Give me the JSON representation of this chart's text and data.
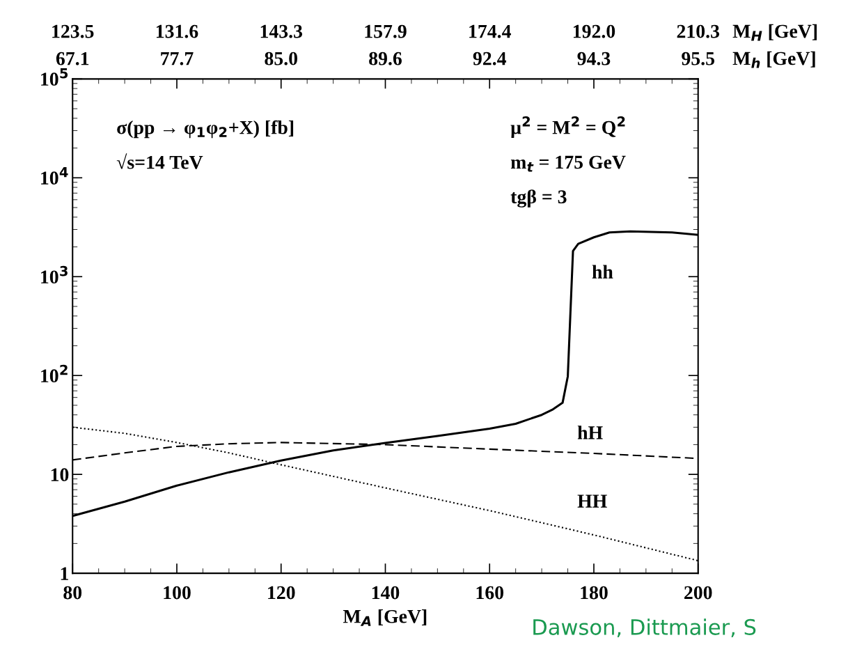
{
  "chart_data": {
    "type": "line",
    "xlabel": "M$_{A}$ [GeV]",
    "xlim": [
      80,
      200
    ],
    "xticks": [
      80,
      100,
      120,
      140,
      160,
      180,
      200
    ],
    "log": true,
    "ylim": [
      1,
      100000
    ],
    "yticks": [
      {
        "value": 1,
        "label": "1"
      },
      {
        "value": 10,
        "label": "10"
      },
      {
        "value": 100,
        "label": "10$^{2}$"
      },
      {
        "value": 1000,
        "label": "10$^{3}$"
      },
      {
        "value": 10000,
        "label": "10$^{4}$"
      },
      {
        "value": 100000,
        "label": "10$^{5}$"
      }
    ],
    "grid": false,
    "marker": "none",
    "annotations": [
      "σ(pp → φ$_{1}$φ$_{2}$+X) [fb]",
      "√s=14 TeV",
      "μ$^{2}$ = M$^{2}$ = Q$^{2}$",
      "m$_{t}$ = 175 GeV",
      "tgβ = 3",
      "Dawson, Dittmaier, S",
      "123.5",
      "131.6",
      "143.3",
      "157.9",
      "174.4",
      "192.0",
      "210.3",
      "M$_{H}$ [GeV]",
      "67.1",
      "77.7",
      "85.0",
      "89.6",
      "92.4",
      "94.3",
      "95.5",
      "M$_{h}$ [GeV]"
    ],
    "series": [
      {
        "name": "hh",
        "color": "#000000",
        "line_style": "solid",
        "x": [
          80,
          90,
          100,
          110,
          120,
          130,
          140,
          150,
          160,
          165,
          170,
          172,
          174,
          175,
          175.5,
          176,
          177,
          180,
          183,
          187,
          195,
          200
        ],
        "values": [
          3.8,
          5.3,
          7.7,
          10.5,
          13.8,
          17.5,
          20.8,
          24.5,
          29,
          32.5,
          40,
          45,
          53,
          98,
          425,
          1820,
          2150,
          2500,
          2800,
          2870,
          2800,
          2650
        ]
      },
      {
        "name": "hH",
        "color": "#000000",
        "line_style": "dashed",
        "x": [
          80,
          90,
          100,
          110,
          120,
          140,
          160,
          180,
          200
        ],
        "values": [
          14,
          16.5,
          19.2,
          20.4,
          21,
          20,
          18,
          16.3,
          14.5
        ]
      },
      {
        "name": "HH",
        "color": "#000000",
        "line_style": "dotted",
        "x": [
          80,
          90,
          100,
          110,
          120,
          140,
          160,
          180,
          200
        ],
        "values": [
          30,
          26,
          21,
          16.5,
          12.5,
          7.3,
          4.3,
          2.44,
          1.34
        ]
      }
    ]
  }
}
